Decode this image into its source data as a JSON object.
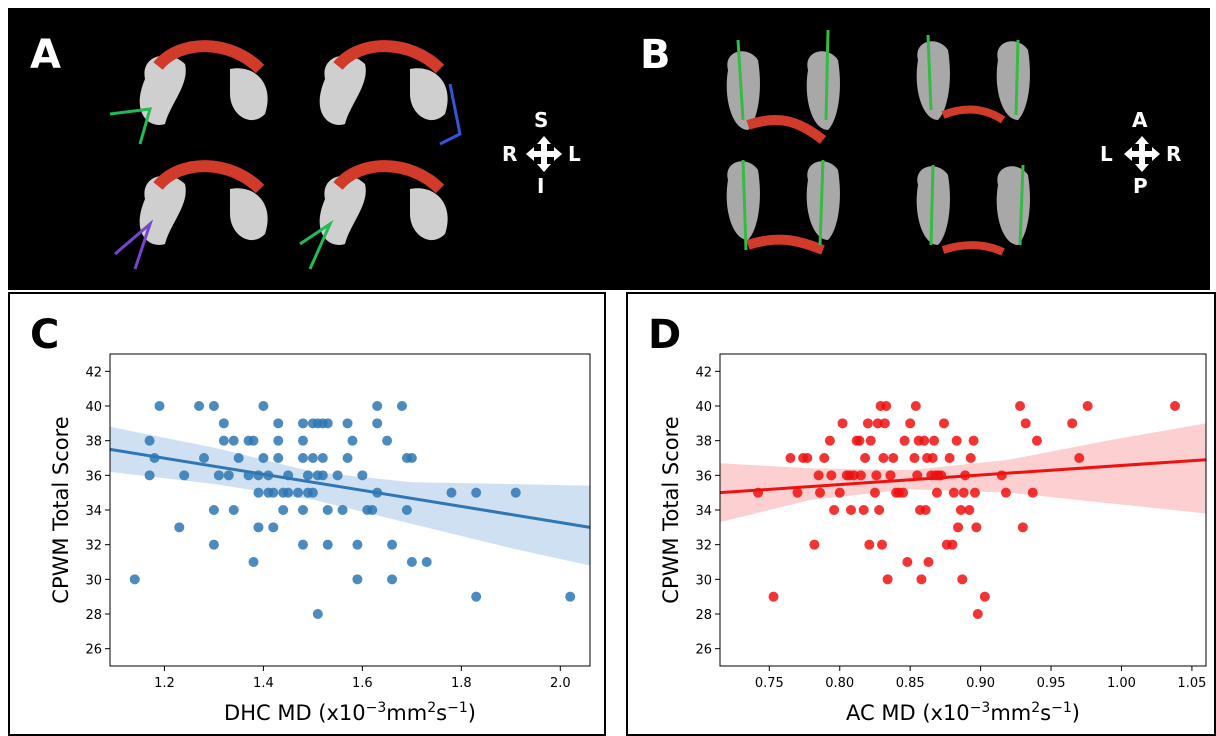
{
  "panels": {
    "A": {
      "letter": "A",
      "orientation": {
        "top": "S",
        "left": "R",
        "right": "L",
        "bottom": "I"
      }
    },
    "B": {
      "letter": "B",
      "orientation": {
        "top": "A",
        "left": "L",
        "right": "R",
        "bottom": "P"
      }
    },
    "C": {
      "letter": "C"
    },
    "D": {
      "letter": "D"
    }
  },
  "colors": {
    "blue": "#2e77b4",
    "blue_band": "#c6dbef",
    "red": "#ee1111",
    "red_band": "#fbc8c8"
  },
  "chart_data": [
    {
      "id": "C",
      "type": "scatter",
      "xlabel": "DHC MD (x10",
      "xlabel_exp": "−3",
      "xlabel_mid": "mm",
      "xlabel_exp2": "2",
      "xlabel_mid2": "s",
      "xlabel_exp3": "−1",
      "xlabel_end": ")",
      "ylabel": "CPWM Total Score",
      "xlim": [
        1.09,
        2.06
      ],
      "ylim": [
        25,
        43
      ],
      "xticks": [
        "1.2",
        "1.4",
        "1.6",
        "1.8",
        "2.0"
      ],
      "xtick_values": [
        1.2,
        1.4,
        1.6,
        1.8,
        2.0
      ],
      "yticks": [
        "26",
        "28",
        "30",
        "32",
        "34",
        "36",
        "38",
        "40",
        "42"
      ],
      "ytick_values": [
        26,
        28,
        30,
        32,
        34,
        36,
        38,
        40,
        42
      ],
      "regression": {
        "x": [
          1.09,
          2.06
        ],
        "y": [
          37.5,
          33.0
        ]
      },
      "ci": {
        "x": [
          1.09,
          1.3,
          1.5,
          1.7,
          1.9,
          2.06
        ],
        "lower": [
          36.2,
          35.5,
          34.6,
          33.2,
          31.8,
          30.8
        ],
        "upper": [
          38.8,
          37.6,
          36.2,
          35.6,
          35.5,
          35.4
        ]
      },
      "points": [
        [
          1.14,
          30
        ],
        [
          1.17,
          36
        ],
        [
          1.17,
          38
        ],
        [
          1.18,
          37
        ],
        [
          1.19,
          40
        ],
        [
          1.23,
          33
        ],
        [
          1.24,
          36
        ],
        [
          1.27,
          40
        ],
        [
          1.28,
          37
        ],
        [
          1.3,
          40
        ],
        [
          1.3,
          34
        ],
        [
          1.3,
          32
        ],
        [
          1.31,
          36
        ],
        [
          1.32,
          39
        ],
        [
          1.32,
          38
        ],
        [
          1.33,
          36
        ],
        [
          1.34,
          38
        ],
        [
          1.34,
          34
        ],
        [
          1.35,
          37
        ],
        [
          1.37,
          38
        ],
        [
          1.37,
          36
        ],
        [
          1.38,
          38
        ],
        [
          1.38,
          31
        ],
        [
          1.39,
          36
        ],
        [
          1.39,
          35
        ],
        [
          1.39,
          33
        ],
        [
          1.4,
          40
        ],
        [
          1.4,
          37
        ],
        [
          1.41,
          36
        ],
        [
          1.41,
          35
        ],
        [
          1.42,
          33
        ],
        [
          1.42,
          35
        ],
        [
          1.43,
          37
        ],
        [
          1.43,
          39
        ],
        [
          1.43,
          38
        ],
        [
          1.44,
          35
        ],
        [
          1.44,
          34
        ],
        [
          1.45,
          35
        ],
        [
          1.45,
          36
        ],
        [
          1.47,
          35
        ],
        [
          1.48,
          39
        ],
        [
          1.48,
          38
        ],
        [
          1.48,
          37
        ],
        [
          1.48,
          32
        ],
        [
          1.48,
          34
        ],
        [
          1.49,
          35
        ],
        [
          1.49,
          36
        ],
        [
          1.5,
          39
        ],
        [
          1.5,
          37
        ],
        [
          1.5,
          35
        ],
        [
          1.51,
          39
        ],
        [
          1.51,
          36
        ],
        [
          1.51,
          28
        ],
        [
          1.52,
          39
        ],
        [
          1.52,
          37
        ],
        [
          1.52,
          36
        ],
        [
          1.53,
          32
        ],
        [
          1.53,
          34
        ],
        [
          1.53,
          39
        ],
        [
          1.55,
          36
        ],
        [
          1.56,
          34
        ],
        [
          1.57,
          39
        ],
        [
          1.57,
          37
        ],
        [
          1.58,
          38
        ],
        [
          1.59,
          30
        ],
        [
          1.59,
          32
        ],
        [
          1.6,
          36
        ],
        [
          1.61,
          34
        ],
        [
          1.62,
          34
        ],
        [
          1.63,
          40
        ],
        [
          1.63,
          39
        ],
        [
          1.63,
          35
        ],
        [
          1.65,
          38
        ],
        [
          1.66,
          32
        ],
        [
          1.66,
          30
        ],
        [
          1.68,
          40
        ],
        [
          1.69,
          37
        ],
        [
          1.69,
          34
        ],
        [
          1.7,
          37
        ],
        [
          1.7,
          31
        ],
        [
          1.73,
          31
        ],
        [
          1.78,
          35
        ],
        [
          1.83,
          35
        ],
        [
          1.83,
          29
        ],
        [
          1.91,
          35
        ],
        [
          2.02,
          29
        ]
      ]
    },
    {
      "id": "D",
      "type": "scatter",
      "xlabel": "AC MD (x10",
      "xlabel_exp": "−3",
      "xlabel_mid": "mm",
      "xlabel_exp2": "2",
      "xlabel_mid2": "s",
      "xlabel_exp3": "−1",
      "xlabel_end": ")",
      "ylabel": "CPWM Total Score",
      "xlim": [
        0.715,
        1.06
      ],
      "ylim": [
        25,
        43
      ],
      "xticks": [
        "0.75",
        "0.80",
        "0.85",
        "0.90",
        "0.95",
        "1.00",
        "1.05"
      ],
      "xtick_values": [
        0.75,
        0.8,
        0.85,
        0.9,
        0.95,
        1.0,
        1.05
      ],
      "yticks": [
        "26",
        "28",
        "30",
        "32",
        "34",
        "36",
        "38",
        "40",
        "42"
      ],
      "ytick_values": [
        26,
        28,
        30,
        32,
        34,
        36,
        38,
        40,
        42
      ],
      "regression": {
        "x": [
          0.715,
          1.06
        ],
        "y": [
          35.0,
          36.9
        ]
      },
      "ci": {
        "x": [
          0.715,
          0.78,
          0.85,
          0.92,
          0.99,
          1.06
        ],
        "lower": [
          33.3,
          34.6,
          35.2,
          35.0,
          34.4,
          33.8
        ],
        "upper": [
          36.7,
          36.4,
          36.3,
          36.9,
          38.0,
          39.0
        ]
      },
      "points": [
        [
          0.742,
          35
        ],
        [
          0.753,
          29
        ],
        [
          0.765,
          37
        ],
        [
          0.77,
          35
        ],
        [
          0.774,
          37
        ],
        [
          0.777,
          37
        ],
        [
          0.782,
          32
        ],
        [
          0.785,
          36
        ],
        [
          0.786,
          35
        ],
        [
          0.789,
          37
        ],
        [
          0.793,
          38
        ],
        [
          0.794,
          36
        ],
        [
          0.796,
          34
        ],
        [
          0.8,
          35
        ],
        [
          0.802,
          39
        ],
        [
          0.805,
          36
        ],
        [
          0.807,
          36
        ],
        [
          0.808,
          34
        ],
        [
          0.81,
          36
        ],
        [
          0.812,
          38
        ],
        [
          0.814,
          38
        ],
        [
          0.815,
          36
        ],
        [
          0.817,
          34
        ],
        [
          0.818,
          37
        ],
        [
          0.82,
          39
        ],
        [
          0.821,
          32
        ],
        [
          0.822,
          38
        ],
        [
          0.825,
          35
        ],
        [
          0.826,
          36
        ],
        [
          0.827,
          39
        ],
        [
          0.828,
          34
        ],
        [
          0.829,
          40
        ],
        [
          0.83,
          32
        ],
        [
          0.831,
          37
        ],
        [
          0.832,
          39
        ],
        [
          0.833,
          40
        ],
        [
          0.834,
          30
        ],
        [
          0.836,
          36
        ],
        [
          0.838,
          37
        ],
        [
          0.84,
          35
        ],
        [
          0.842,
          35
        ],
        [
          0.845,
          35
        ],
        [
          0.846,
          38
        ],
        [
          0.848,
          31
        ],
        [
          0.85,
          39
        ],
        [
          0.853,
          37
        ],
        [
          0.854,
          40
        ],
        [
          0.855,
          36
        ],
        [
          0.856,
          38
        ],
        [
          0.857,
          34
        ],
        [
          0.858,
          30
        ],
        [
          0.86,
          38
        ],
        [
          0.861,
          34
        ],
        [
          0.862,
          37
        ],
        [
          0.863,
          31
        ],
        [
          0.865,
          36
        ],
        [
          0.866,
          37
        ],
        [
          0.867,
          38
        ],
        [
          0.868,
          36
        ],
        [
          0.869,
          35
        ],
        [
          0.87,
          36
        ],
        [
          0.872,
          36
        ],
        [
          0.874,
          39
        ],
        [
          0.876,
          32
        ],
        [
          0.878,
          37
        ],
        [
          0.88,
          32
        ],
        [
          0.881,
          35
        ],
        [
          0.883,
          38
        ],
        [
          0.884,
          33
        ],
        [
          0.886,
          34
        ],
        [
          0.887,
          30
        ],
        [
          0.888,
          35
        ],
        [
          0.889,
          36
        ],
        [
          0.892,
          34
        ],
        [
          0.893,
          37
        ],
        [
          0.895,
          38
        ],
        [
          0.896,
          35
        ],
        [
          0.897,
          33
        ],
        [
          0.898,
          28
        ],
        [
          0.903,
          29
        ],
        [
          0.915,
          36
        ],
        [
          0.918,
          35
        ],
        [
          0.928,
          40
        ],
        [
          0.93,
          33
        ],
        [
          0.932,
          39
        ],
        [
          0.937,
          35
        ],
        [
          0.94,
          38
        ],
        [
          0.965,
          39
        ],
        [
          0.97,
          37
        ],
        [
          0.976,
          40
        ],
        [
          1.038,
          40
        ]
      ]
    }
  ]
}
